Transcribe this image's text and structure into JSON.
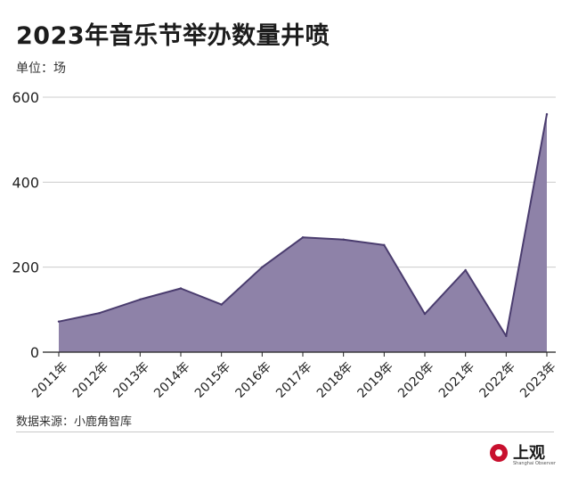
{
  "header": {
    "title": "2023年音乐节举办数量井喷",
    "unit": "单位：场"
  },
  "footer": {
    "source": "数据来源：小鹿角智库",
    "brand_name": "上观",
    "brand_sub": "Shanghai Observer"
  },
  "colors": {
    "area_fill": "#8e82a8",
    "line": "#4a3c6e",
    "grid": "#cccccc",
    "axis": "#222222"
  },
  "chart_data": {
    "type": "area",
    "categories": [
      "2011年",
      "2012年",
      "2013年",
      "2014年",
      "2015年",
      "2016年",
      "2017年",
      "2018年",
      "2019年",
      "2020年",
      "2021年",
      "2022年",
      "2023年"
    ],
    "values": [
      72,
      92,
      124,
      150,
      112,
      200,
      270,
      265,
      252,
      90,
      193,
      38,
      560
    ],
    "y_ticks": [
      0,
      200,
      400,
      600
    ],
    "ylim": [
      0,
      600
    ],
    "grid": true,
    "legend": "none"
  }
}
